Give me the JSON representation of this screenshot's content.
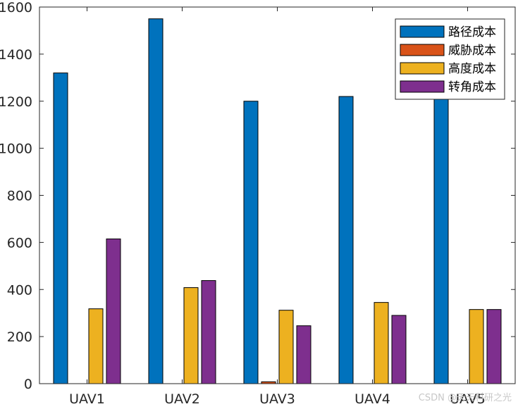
{
  "chart_data": {
    "type": "bar",
    "title": "",
    "xlabel": "",
    "ylabel": "",
    "categories": [
      "UAV1",
      "UAV2",
      "UAV3",
      "UAV4",
      "UAV5"
    ],
    "ylim": [
      0,
      1600
    ],
    "yticks": [
      0,
      200,
      400,
      600,
      800,
      1000,
      1200,
      1400,
      1600
    ],
    "grid": false,
    "legend_position": "top-right",
    "series": [
      {
        "name": "路径成本",
        "color": "#0072BD",
        "values": [
          1320,
          1550,
          1200,
          1220,
          1230
        ]
      },
      {
        "name": "威胁成本",
        "color": "#D95319",
        "values": [
          0,
          0,
          8,
          0,
          0
        ]
      },
      {
        "name": "高度成本",
        "color": "#EDB120",
        "values": [
          318,
          408,
          312,
          345,
          315
        ]
      },
      {
        "name": "转角成本",
        "color": "#7E2F8E",
        "values": [
          615,
          438,
          246,
          290,
          315
        ]
      }
    ]
  },
  "watermark": "CSDN @天天科研之光"
}
